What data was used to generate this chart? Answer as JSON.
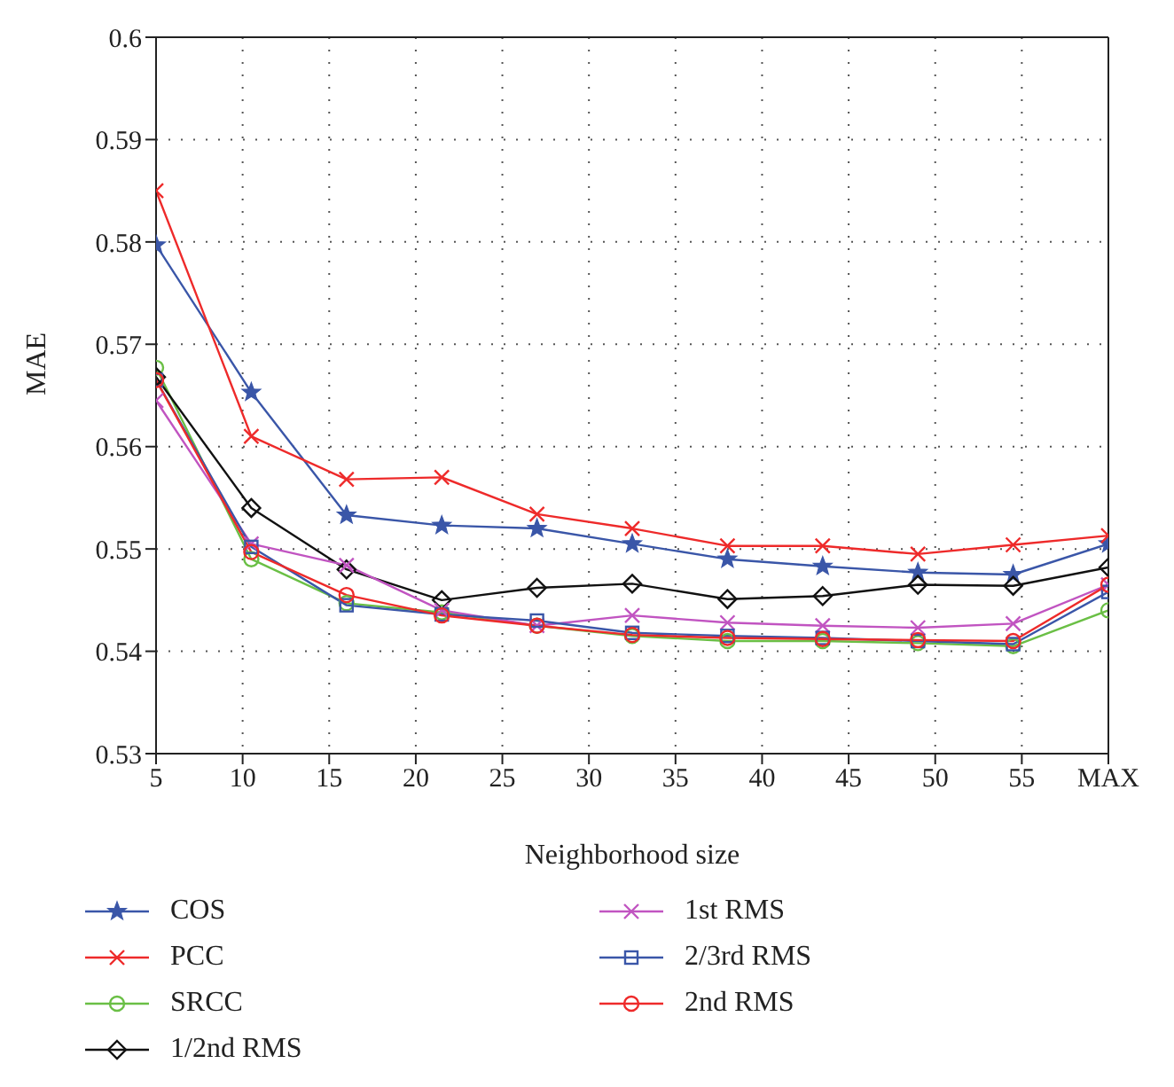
{
  "chart_data": {
    "type": "line",
    "xlabel": "Neighborhood size",
    "ylabel": "MAE",
    "x": [
      5,
      10.5,
      16,
      21.5,
      27,
      32.5,
      38,
      43.5,
      49,
      54.5,
      60
    ],
    "xlim": [
      5,
      60
    ],
    "xticks": [
      5,
      10,
      15,
      20,
      25,
      30,
      35,
      40,
      45,
      50,
      55,
      {
        "value": 60,
        "label": "MAX"
      }
    ],
    "ylim": [
      0.53,
      0.6
    ],
    "yticks": [
      0.53,
      0.54,
      0.55,
      0.56,
      0.57,
      0.58,
      0.59,
      0.6
    ],
    "grid": true,
    "legend": "bottom",
    "line_style": "solid",
    "series": [
      {
        "name": "COS",
        "color": "#3a56a8",
        "marker": "star",
        "values": [
          0.5797,
          0.5653,
          0.5533,
          0.5523,
          0.552,
          0.5505,
          0.549,
          0.5483,
          0.5477,
          0.5475,
          0.5505
        ]
      },
      {
        "name": "PCC",
        "color": "#ee2a2a",
        "marker": "cross",
        "values": [
          0.585,
          0.561,
          0.5568,
          0.557,
          0.5534,
          0.552,
          0.5503,
          0.5503,
          0.5495,
          0.5504,
          0.5513
        ]
      },
      {
        "name": "SRCC",
        "color": "#6abf45",
        "marker": "circle",
        "values": [
          0.5677,
          0.549,
          0.5447,
          0.5438,
          0.5425,
          0.5415,
          0.541,
          0.541,
          0.5408,
          0.5405,
          0.544
        ]
      },
      {
        "name": "1/2nd RMS",
        "color": "#111111",
        "marker": "diamond",
        "values": [
          0.5668,
          0.554,
          0.548,
          0.545,
          0.5462,
          0.5466,
          0.5451,
          0.5454,
          0.5465,
          0.5464,
          0.5482
        ]
      },
      {
        "name": "1st RMS",
        "color": "#c154c1",
        "marker": "cross",
        "values": [
          0.5645,
          0.5505,
          0.5484,
          0.544,
          0.5425,
          0.5435,
          0.5428,
          0.5425,
          0.5423,
          0.5427,
          0.5465
        ]
      },
      {
        "name": "2/3rd RMS",
        "color": "#3a56a8",
        "marker": "square",
        "values": [
          0.5665,
          0.5502,
          0.5445,
          0.5436,
          0.543,
          0.5418,
          0.5415,
          0.5413,
          0.541,
          0.5407,
          0.5458
        ]
      },
      {
        "name": "2nd RMS",
        "color": "#ee2a2a",
        "marker": "circle",
        "values": [
          0.5665,
          0.5497,
          0.5455,
          0.5435,
          0.5425,
          0.5416,
          0.5413,
          0.5412,
          0.5411,
          0.541,
          0.5465
        ]
      }
    ]
  }
}
